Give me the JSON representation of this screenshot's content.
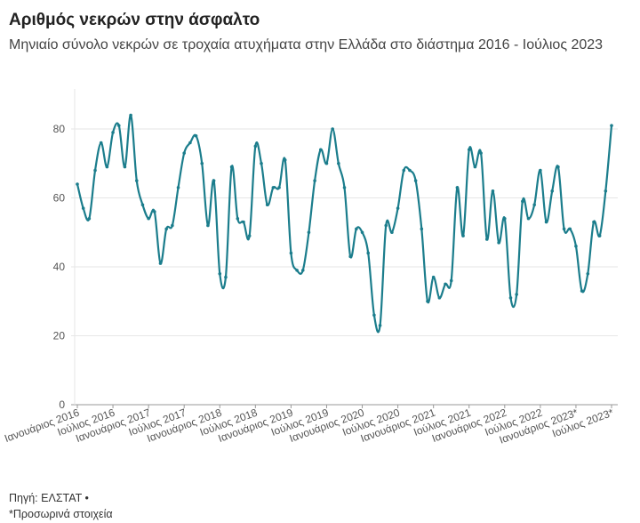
{
  "title": "Αριθμός νεκρών στην άσφαλτο",
  "subtitle": "Μηνιαίο σύνολο νεκρών σε τροχαία ατυχήματα στην Ελλάδα στο διάστημα 2016 - Ιούλιος 2023",
  "source": "Πηγή: ΕΛΣΤΑΤ •",
  "note": "*Προσωρινά στοιχεία",
  "colors": {
    "line": "#1b7d8c",
    "grid": "#e6e6e6",
    "axis": "#999999"
  },
  "chart_data": {
    "type": "line",
    "title": "Αριθμός νεκρών στην άσφαλτο",
    "xlabel": "",
    "ylabel": "",
    "ylim": [
      0,
      90
    ],
    "yticks": [
      0,
      20,
      40,
      60,
      80
    ],
    "grid": true,
    "start": "Ιανουάριος 2016",
    "xtick_labels": [
      "Ιανουάριος 2016",
      "Ιούλιος 2016",
      "Ιανουάριος 2017",
      "Ιούλιος 2017",
      "Ιανουάριος 2018",
      "Ιούλιος 2018",
      "Ιανουάριος 2019",
      "Ιούλιος 2019",
      "Ιανουάριος 2020",
      "Ιούλιος 2020",
      "Ιανουάριος 2021",
      "Ιούλιος 2021",
      "Ιανουάριος 2022",
      "Ιούλιος 2022",
      "Ιανουάριος 2023*",
      "Ιούλιος 2023*"
    ],
    "series": [
      {
        "name": "Νεκροί",
        "values": [
          64,
          57,
          54,
          68,
          76,
          69,
          79,
          81,
          69,
          84,
          65,
          58,
          54,
          56,
          41,
          51,
          52,
          63,
          73,
          76,
          78,
          70,
          52,
          65,
          38,
          37,
          69,
          54,
          53,
          49,
          75,
          70,
          58,
          63,
          63,
          71,
          44,
          39,
          39,
          50,
          65,
          74,
          70,
          80,
          70,
          63,
          43,
          51,
          50,
          44,
          26,
          23,
          52,
          50,
          57,
          68,
          68,
          65,
          51,
          30,
          37,
          31,
          35,
          36,
          63,
          49,
          74,
          69,
          73,
          48,
          62,
          47,
          54,
          31,
          32,
          59,
          54,
          58,
          68,
          53,
          62,
          69,
          51,
          51,
          46,
          33,
          38,
          53,
          49,
          62,
          81
        ]
      }
    ]
  }
}
